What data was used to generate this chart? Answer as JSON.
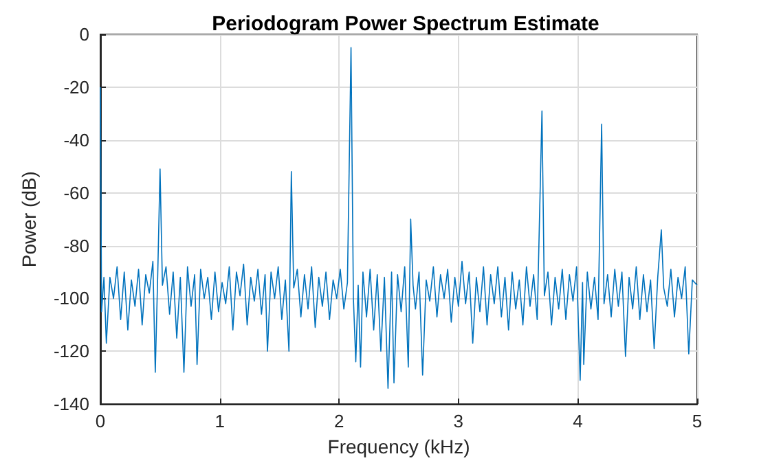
{
  "chart_data": {
    "type": "line",
    "title": "Periodogram Power Spectrum Estimate",
    "xlabel": "Frequency (kHz)",
    "ylabel": "Power (dB)",
    "xlim": [
      0,
      5
    ],
    "xticks": [
      0,
      1,
      2,
      3,
      4,
      5
    ],
    "ylim": [
      -140,
      0
    ],
    "yticks": [
      -140,
      -120,
      -100,
      -80,
      -60,
      -40,
      -20,
      0
    ],
    "grid": true,
    "series": [
      {
        "color": "#0072bd",
        "x": [
          0,
          0.01,
          0.03,
          0.05,
          0.08,
          0.11,
          0.14,
          0.17,
          0.2,
          0.23,
          0.26,
          0.29,
          0.32,
          0.35,
          0.38,
          0.41,
          0.44,
          0.46,
          0.48,
          0.5,
          0.52,
          0.55,
          0.58,
          0.61,
          0.64,
          0.67,
          0.7,
          0.73,
          0.76,
          0.79,
          0.81,
          0.84,
          0.87,
          0.9,
          0.93,
          0.96,
          0.99,
          1.02,
          1.05,
          1.08,
          1.11,
          1.14,
          1.17,
          1.2,
          1.23,
          1.26,
          1.29,
          1.32,
          1.35,
          1.38,
          1.4,
          1.43,
          1.46,
          1.49,
          1.52,
          1.55,
          1.58,
          1.6,
          1.62,
          1.65,
          1.68,
          1.71,
          1.74,
          1.77,
          1.8,
          1.83,
          1.86,
          1.89,
          1.92,
          1.95,
          1.98,
          2.01,
          2.04,
          2.07,
          2.1,
          2.12,
          2.14,
          2.16,
          2.18,
          2.2,
          2.23,
          2.26,
          2.29,
          2.32,
          2.35,
          2.38,
          2.41,
          2.44,
          2.46,
          2.49,
          2.52,
          2.55,
          2.58,
          2.6,
          2.62,
          2.64,
          2.67,
          2.7,
          2.73,
          2.76,
          2.79,
          2.82,
          2.85,
          2.88,
          2.91,
          2.94,
          2.97,
          3.0,
          3.03,
          3.06,
          3.09,
          3.12,
          3.15,
          3.18,
          3.21,
          3.24,
          3.27,
          3.3,
          3.33,
          3.36,
          3.39,
          3.42,
          3.45,
          3.48,
          3.51,
          3.54,
          3.57,
          3.6,
          3.63,
          3.66,
          3.7,
          3.72,
          3.75,
          3.78,
          3.81,
          3.84,
          3.87,
          3.9,
          3.93,
          3.96,
          3.99,
          4.02,
          4.04,
          4.05,
          4.08,
          4.11,
          4.14,
          4.17,
          4.2,
          4.22,
          4.25,
          4.28,
          4.31,
          4.34,
          4.37,
          4.4,
          4.43,
          4.46,
          4.49,
          4.52,
          4.55,
          4.58,
          4.61,
          4.64,
          4.67,
          4.7,
          4.72,
          4.75,
          4.78,
          4.81,
          4.84,
          4.87,
          4.9,
          4.93,
          4.96,
          5.0
        ],
        "values": [
          -20,
          -105,
          -92,
          -117,
          -92,
          -100,
          -88,
          -108,
          -90,
          -112,
          -93,
          -103,
          -89,
          -110,
          -91,
          -98,
          -86,
          -128,
          -92,
          -51,
          -95,
          -88,
          -106,
          -90,
          -115,
          -92,
          -128,
          -88,
          -103,
          -91,
          -125,
          -89,
          -100,
          -92,
          -108,
          -90,
          -105,
          -94,
          -102,
          -88,
          -112,
          -90,
          -99,
          -87,
          -110,
          -92,
          -101,
          -89,
          -106,
          -91,
          -120,
          -90,
          -100,
          -88,
          -108,
          -93,
          -120,
          -52,
          -96,
          -89,
          -107,
          -91,
          -104,
          -88,
          -111,
          -92,
          -103,
          -90,
          -108,
          -93,
          -100,
          -89,
          -104,
          -94,
          -5,
          -100,
          -124,
          -95,
          -126,
          -90,
          -107,
          -89,
          -112,
          -91,
          -120,
          -92,
          -134,
          -90,
          -132,
          -91,
          -105,
          -88,
          -126,
          -70,
          -95,
          -104,
          -90,
          -129,
          -93,
          -101,
          -88,
          -107,
          -91,
          -100,
          -89,
          -109,
          -92,
          -103,
          -86,
          -102,
          -90,
          -117,
          -92,
          -105,
          -88,
          -110,
          -91,
          -102,
          -88,
          -107,
          -92,
          -112,
          -90,
          -104,
          -93,
          -110,
          -88,
          -103,
          -91,
          -108,
          -29,
          -99,
          -90,
          -110,
          -92,
          -104,
          -89,
          -108,
          -91,
          -101,
          -88,
          -131,
          -94,
          -125,
          -90,
          -104,
          -92,
          -108,
          -34,
          -102,
          -91,
          -107,
          -89,
          -103,
          -90,
          -122,
          -92,
          -104,
          -88,
          -108,
          -91,
          -105,
          -93,
          -119,
          -92,
          -74,
          -96,
          -103,
          -89,
          -107,
          -92,
          -100,
          -88,
          -121,
          -93,
          -95
        ]
      }
    ]
  }
}
